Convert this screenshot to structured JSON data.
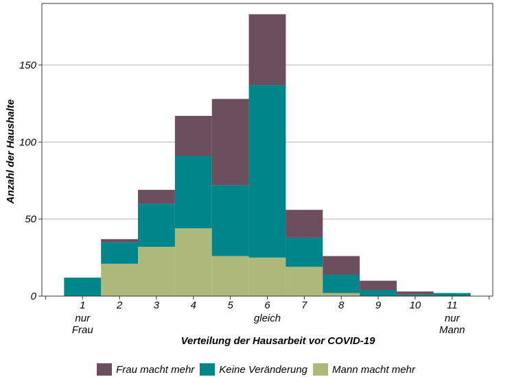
{
  "chart_data": {
    "type": "bar",
    "stacked": true,
    "xlabel": "Verteilung der Hausarbeit vor COVID-19",
    "ylabel": "Anzahl der Haushalte",
    "ylim": [
      0,
      190
    ],
    "xlim": [
      -0.1,
      12.1
    ],
    "yticks": [
      0,
      50,
      100,
      150
    ],
    "grid": "horizontal",
    "legend_position": "bottom",
    "categories": [
      "1",
      "2",
      "3",
      "4",
      "5",
      "6",
      "7",
      "8",
      "9",
      "10",
      "11"
    ],
    "category_sublabels": {
      "1": [
        "nur",
        "Frau"
      ],
      "6": [
        "gleich"
      ],
      "11": [
        "nur",
        "Mann"
      ]
    },
    "series": [
      {
        "name": "Mann macht mehr",
        "color": "#adb87a",
        "values": [
          0,
          21,
          32,
          44,
          26,
          25,
          19,
          2,
          0,
          0,
          0
        ]
      },
      {
        "name": "Keine Veränderung",
        "color": "#00868a",
        "values": [
          12,
          14,
          28,
          47,
          46,
          112,
          19,
          12,
          4,
          1,
          2
        ]
      },
      {
        "name": "Frau macht mehr",
        "color": "#6b4f5c",
        "values": [
          0,
          2,
          9,
          26,
          56,
          46,
          18,
          12,
          6,
          2,
          0
        ]
      }
    ],
    "legend_order": [
      "Frau macht mehr",
      "Keine Veränderung",
      "Mann macht mehr"
    ]
  }
}
